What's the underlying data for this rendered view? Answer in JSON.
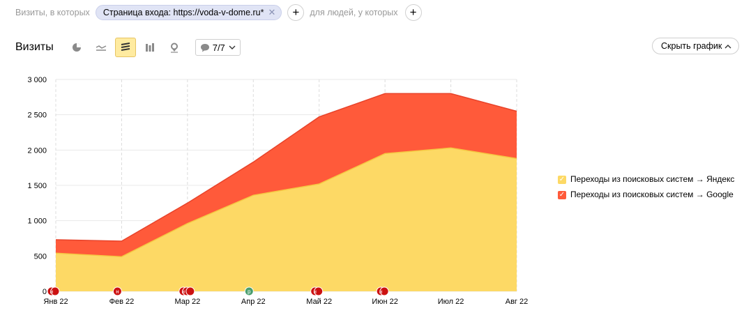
{
  "filters": {
    "visits_label": "Визиты, в которых",
    "chip_label": "Страница входа: https://voda-v-dome.ru*",
    "people_label": "для людей, у которых"
  },
  "toolbar": {
    "title": "Визиты",
    "counter": "7/7",
    "hide_chart": "Скрыть график"
  },
  "chart_data": {
    "type": "area",
    "stacked": true,
    "title": "",
    "xlabel": "",
    "ylabel": "",
    "categories": [
      "Янв 22",
      "Фев 22",
      "Мар 22",
      "Апр 22",
      "Май 22",
      "Июн 22",
      "Июл 22",
      "Авг 22"
    ],
    "series": [
      {
        "name": "Переходы из поисковых систем → Яндекс",
        "color": "#fdd965",
        "values": [
          540,
          490,
          960,
          1360,
          1520,
          1950,
          2030,
          1880
        ]
      },
      {
        "name": "Переходы из поисковых систем → Google",
        "color": "#ff5a3a",
        "values": [
          190,
          220,
          290,
          470,
          950,
          850,
          770,
          670
        ]
      }
    ],
    "ylim": [
      0,
      3000
    ],
    "yticks": [
      0,
      500,
      1000,
      1500,
      2000,
      2500,
      3000
    ],
    "ytick_labels": [
      "0",
      "500",
      "1 000",
      "1 500",
      "2 000",
      "2 500",
      "3 000"
    ],
    "grid": true,
    "legend_position": "right",
    "annotations": [
      {
        "x": "Янв 22",
        "markers": [
          "н",
          "н"
        ],
        "color": "#cc1111"
      },
      {
        "x": "Фев 22",
        "markers": [
          "н"
        ],
        "color": "#cc1111"
      },
      {
        "x": "Мар 22",
        "markers": [
          "н",
          "н",
          "н"
        ],
        "color": "#cc1111"
      },
      {
        "x": "Апр 22",
        "markers": [
          "р"
        ],
        "color": "#4a9e6e"
      },
      {
        "x": "Май 22",
        "markers": [
          "н",
          "н"
        ],
        "color": "#cc1111"
      },
      {
        "x": "Июн 22",
        "markers": [
          "н",
          "н"
        ],
        "color": "#cc1111"
      }
    ]
  }
}
